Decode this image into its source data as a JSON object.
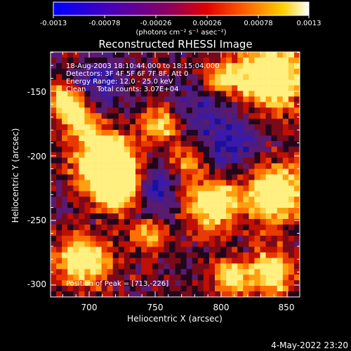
{
  "colorbar": {
    "tick_labels": [
      "-0.0013",
      "-0.00078",
      "-0.00026",
      "0.00026",
      "0.00078",
      "0.0013"
    ],
    "unit_label": "(photons cm⁻² s⁻¹ asec⁻²)",
    "colors": [
      "#0000ff",
      "#4000c0",
      "#800080",
      "#cc0000",
      "#ff4000",
      "#ff9000",
      "#ffe020",
      "#ffffff"
    ]
  },
  "plot": {
    "title": "Reconstructed RHESSI Image",
    "info_lines": [
      "18-Aug-2003 18:10:44.000 to 18:15:04.000",
      "Detectors: 3F 4F 5F 6F 7F 8F, Att 0",
      "Energy Range: 12.0 - 25.0 keV",
      "Clean     Total counts: 3.07E+04"
    ],
    "peak_text": "Position of Peak = [713,-226]",
    "xlabel": "Heliocentric X (arcsec)",
    "ylabel": "Heliocentric Y (arcsec)",
    "x_tick_labels": [
      "700",
      "750",
      "800",
      "850"
    ],
    "y_tick_labels": [
      "-150",
      "-200",
      "-250",
      "-300"
    ]
  },
  "footer": {
    "timestamp": "4-May-2022 23:20"
  }
}
